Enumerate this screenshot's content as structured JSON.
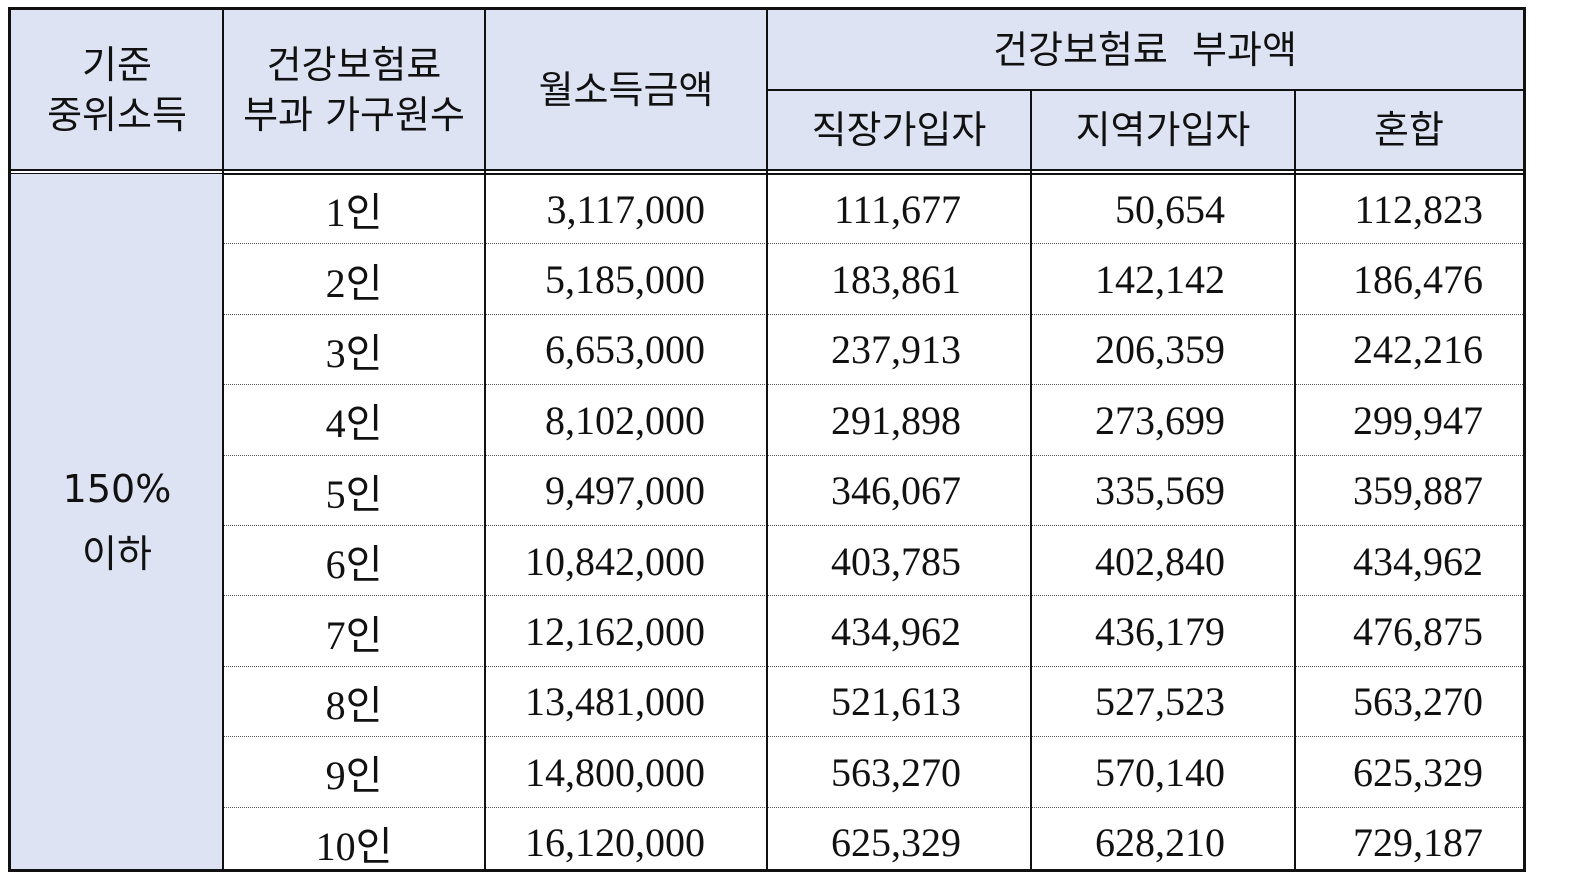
{
  "table": {
    "header": {
      "criterion": "기준\n중위소득",
      "household": "건강보험료\n부과 가구원수",
      "income": "월소득금액",
      "premium_group": "건강보험료  부과액",
      "employee": "직장가입자",
      "regional": "지역가입자",
      "mixed": "혼합"
    },
    "criterion_value": "150%\n이하",
    "rows": [
      {
        "household": "1인",
        "income": "3,117,000",
        "employee": "111,677",
        "regional": "50,654",
        "mixed": "112,823"
      },
      {
        "household": "2인",
        "income": "5,185,000",
        "employee": "183,861",
        "regional": "142,142",
        "mixed": "186,476"
      },
      {
        "household": "3인",
        "income": "6,653,000",
        "employee": "237,913",
        "regional": "206,359",
        "mixed": "242,216"
      },
      {
        "household": "4인",
        "income": "8,102,000",
        "employee": "291,898",
        "regional": "273,699",
        "mixed": "299,947"
      },
      {
        "household": "5인",
        "income": "9,497,000",
        "employee": "346,067",
        "regional": "335,569",
        "mixed": "359,887"
      },
      {
        "household": "6인",
        "income": "10,842,000",
        "employee": "403,785",
        "regional": "402,840",
        "mixed": "434,962"
      },
      {
        "household": "7인",
        "income": "12,162,000",
        "employee": "434,962",
        "regional": "436,179",
        "mixed": "476,875"
      },
      {
        "household": "8인",
        "income": "13,481,000",
        "employee": "521,613",
        "regional": "527,523",
        "mixed": "563,270"
      },
      {
        "household": "9인",
        "income": "14,800,000",
        "employee": "563,270",
        "regional": "570,140",
        "mixed": "625,329"
      },
      {
        "household": "10인",
        "income": "16,120,000",
        "employee": "625,329",
        "regional": "628,210",
        "mixed": "729,187"
      }
    ]
  }
}
